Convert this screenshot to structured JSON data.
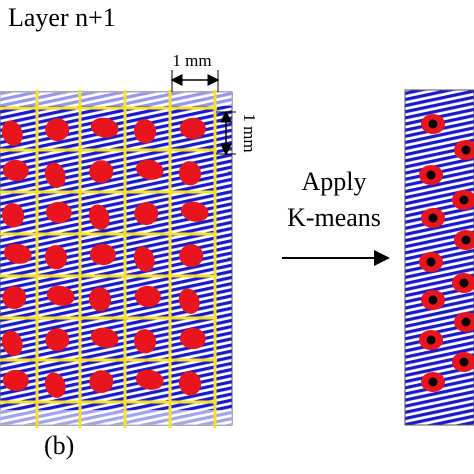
{
  "figure": {
    "title": "Layer n+1",
    "scale_horizontal": "1 mm",
    "scale_vertical": "1 mm",
    "arrow_label_line1": "Apply",
    "arrow_label_line2": "K-means",
    "panel_label": "(b)"
  }
}
